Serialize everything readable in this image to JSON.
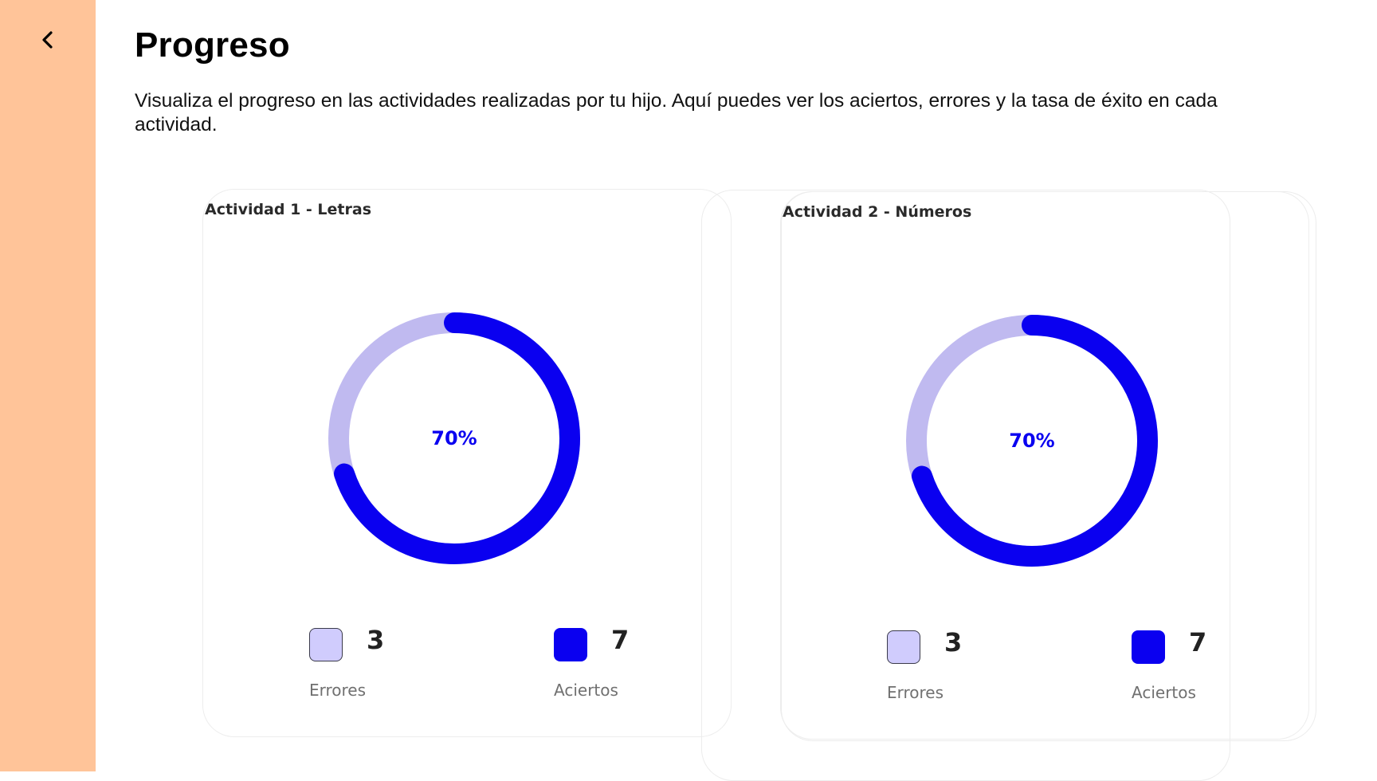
{
  "header": {
    "back_icon": "chevron-left-icon",
    "title": "Progreso",
    "description": "Visualiza el progreso en las actividades realizadas por tu hijo. Aquí puedes ver los aciertos, errores y la tasa de éxito en cada actividad."
  },
  "colors": {
    "sidebar": "#FFC499",
    "aciertos": "#0A00F0",
    "errores_ring": "#C0BAF0",
    "errores_swatch": "#D0CCFD"
  },
  "activities": [
    {
      "title": "Actividad 1 - Letras",
      "percent_label": "70%",
      "success_rate": 0.7,
      "errores_value": "3",
      "errores_label": "Errores",
      "aciertos_value": "7",
      "aciertos_label": "Aciertos"
    },
    {
      "title": "Actividad 2 - Números",
      "percent_label": "70%",
      "success_rate": 0.7,
      "errores_value": "3",
      "errores_label": "Errores",
      "aciertos_value": "7",
      "aciertos_label": "Aciertos"
    }
  ]
}
